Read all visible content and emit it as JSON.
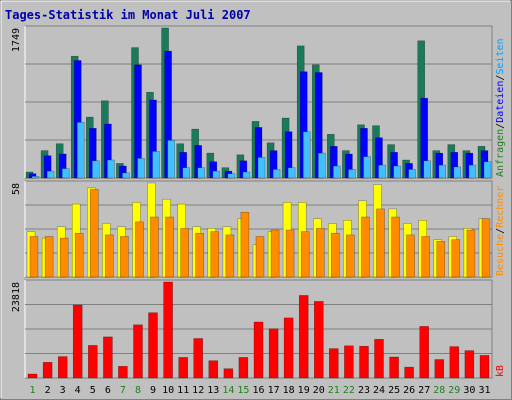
{
  "chart_data": {
    "type": "bar",
    "title": "Tages-Statistik im Monat Juli 2007",
    "days": [
      "1",
      "2",
      "3",
      "4",
      "5",
      "6",
      "7",
      "8",
      "9",
      "10",
      "11",
      "12",
      "13",
      "14",
      "15",
      "16",
      "17",
      "18",
      "19",
      "20",
      "21",
      "22",
      "23",
      "24",
      "25",
      "26",
      "27",
      "28",
      "29",
      "30",
      "31"
    ],
    "weekend_days": [
      "1",
      "7",
      "8",
      "14",
      "15",
      "21",
      "22",
      "28",
      "29"
    ],
    "colors": {
      "frame_bg": "#c0c0c0",
      "title": "#0000aa",
      "gridline": "#808080",
      "anfragen": "#1a7a5a",
      "dateien": "#0000ff",
      "seiten": "#40c0ff",
      "besuche": "#ffff00",
      "rechner": "#ff8c00",
      "kb": "#ff0000",
      "weekday_label": "#000000",
      "weekend_label": "#208020",
      "legend_anfragen": "#208020",
      "legend_dateien": "#0000ff",
      "legend_seiten": "#00a0ff",
      "legend_besuche": "#ff8c00",
      "legend_rechner": "#ff8c00",
      "legend_kb": "#ff0000"
    },
    "panels": [
      {
        "id": "hits",
        "ymax_label": "1749",
        "ymax": 1749,
        "legend": [
          {
            "label": "Anfragen",
            "color_key": "legend_anfragen"
          },
          {
            "sep": "/"
          },
          {
            "label": "Dateien",
            "color_key": "legend_dateien"
          },
          {
            "sep": "/"
          },
          {
            "label": "Seiten",
            "color_key": "legend_seiten"
          }
        ],
        "series": [
          {
            "key": "anfragen",
            "color_key": "anfragen",
            "values": [
              70,
              320,
              400,
              1420,
              710,
              900,
              170,
              1520,
              1000,
              1749,
              400,
              570,
              290,
              120,
              270,
              660,
              410,
              700,
              1540,
              1320,
              510,
              320,
              620,
              610,
              390,
              210,
              1600,
              320,
              390,
              320,
              370
            ]
          },
          {
            "key": "dateien",
            "color_key": "dateien",
            "values": [
              50,
              260,
              280,
              1370,
              580,
              630,
              140,
              1320,
              910,
              1480,
              300,
              380,
              190,
              80,
              200,
              590,
              320,
              540,
              1240,
              1230,
              370,
              280,
              580,
              470,
              300,
              170,
              930,
              290,
              300,
              290,
              320
            ]
          },
          {
            "key": "seiten",
            "color_key": "seiten",
            "values": [
              20,
              80,
              110,
              650,
              200,
              210,
              60,
              230,
              310,
              440,
              120,
              120,
              80,
              50,
              70,
              240,
              100,
              120,
              540,
              290,
              140,
              100,
              250,
              150,
              140,
              100,
              200,
              150,
              130,
              150,
              190
            ]
          }
        ]
      },
      {
        "id": "visits",
        "ymax_label": "58",
        "ymax": 58,
        "legend": [
          {
            "label": "Besuche",
            "color_key": "legend_besuche"
          },
          {
            "sep": "/"
          },
          {
            "label": "Rechner",
            "color_key": "legend_rechner"
          }
        ],
        "series": [
          {
            "key": "besuche",
            "color_key": "besuche",
            "values": [
              28,
              24,
              31,
              45,
              55,
              33,
              31,
              46,
              58,
              48,
              45,
              31,
              30,
              31,
              36,
              20,
              28,
              46,
              46,
              36,
              33,
              35,
              47,
              57,
              42,
              33,
              35,
              23,
              25,
              30,
              36
            ]
          },
          {
            "key": "rechner",
            "color_key": "rechner",
            "values": [
              25,
              25,
              24,
              27,
              54,
              26,
              25,
              34,
              37,
              37,
              30,
              27,
              28,
              26,
              40,
              25,
              29,
              29,
              28,
              30,
              27,
              26,
              37,
              42,
              37,
              26,
              25,
              22,
              23,
              29,
              36
            ]
          }
        ]
      },
      {
        "id": "kb",
        "ymax_label": "23818",
        "ymax": 23818,
        "legend": [
          {
            "label": "kB",
            "color_key": "legend_kb"
          }
        ],
        "series": [
          {
            "key": "kb",
            "color_key": "kb",
            "values": [
              1000,
              3900,
              5300,
              18100,
              8100,
              10200,
              2900,
              13200,
              16200,
              23818,
              5100,
              9800,
              4300,
              2300,
              5100,
              13900,
              12200,
              14900,
              20500,
              19000,
              7300,
              8000,
              7900,
              9600,
              5200,
              2700,
              12800,
              4600,
              7800,
              6800,
              5600
            ]
          }
        ]
      }
    ]
  }
}
